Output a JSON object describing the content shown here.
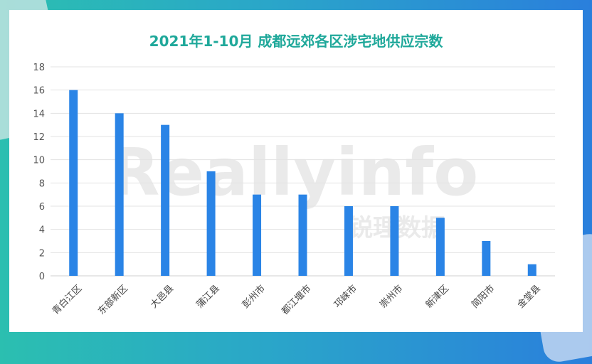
{
  "chart_data": {
    "type": "bar",
    "title": "2021年1-10月 成都远郊各区涉宅地供应宗数",
    "categories": [
      "青白江区",
      "东部新区",
      "大邑县",
      "蒲江县",
      "彭州市",
      "都江堰市",
      "邛崃市",
      "崇州市",
      "新津区",
      "简阳市",
      "金堂县"
    ],
    "series": [
      {
        "values": [
          16,
          14,
          13,
          9,
          7,
          7,
          6,
          6,
          5,
          3,
          1
        ]
      }
    ],
    "ylim": [
      0,
      18
    ],
    "yticks": [
      0,
      2,
      4,
      6,
      8,
      10,
      12,
      14,
      16,
      18
    ],
    "grid": true,
    "bar_color": "#2a84e6",
    "title_color": "#1fa89a"
  },
  "watermark": {
    "logo_text": "Reallyinfo",
    "cn_text": "锐理数据"
  }
}
